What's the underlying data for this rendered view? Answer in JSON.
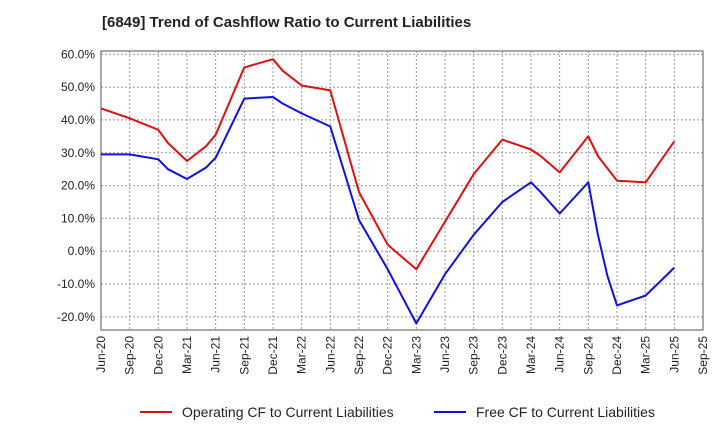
{
  "chart_data": {
    "type": "line",
    "title": "[6849]  Trend of Cashflow Ratio to Current Liabilities",
    "xlabel": "",
    "ylabel": "",
    "x_ticks": [
      "Jun-20",
      "Sep-20",
      "Dec-20",
      "Mar-21",
      "Jun-21",
      "Sep-21",
      "Dec-21",
      "Mar-22",
      "Jun-22",
      "Sep-22",
      "Dec-22",
      "Mar-23",
      "Jun-23",
      "Sep-23",
      "Dec-23",
      "Mar-24",
      "Jun-24",
      "Sep-24",
      "Dec-24",
      "Mar-25",
      "Jun-25",
      "Sep-25"
    ],
    "y_ticks": [
      "60.0%",
      "50.0%",
      "40.0%",
      "30.0%",
      "20.0%",
      "10.0%",
      "0.0%",
      "-10.0%",
      "-20.0%"
    ],
    "ylim": [
      -24,
      61
    ],
    "grid": true,
    "legend_position": "bottom",
    "series": [
      {
        "name": "Operating CF to Current Liabilities",
        "color": "#dd1111",
        "x": [
          "Jun-20",
          "Sep-20",
          "Dec-20",
          "Jan-21",
          "Mar-21",
          "May-21",
          "Jun-21",
          "Sep-21",
          "Dec-21",
          "Jan-22",
          "Mar-22",
          "Jun-22",
          "Sep-22",
          "Dec-22",
          "Mar-23",
          "Jun-23",
          "Sep-23",
          "Dec-23",
          "Mar-24",
          "Apr-24",
          "Jun-24",
          "Sep-24",
          "Oct-24",
          "Dec-24",
          "Mar-25",
          "Jun-25"
        ],
        "y": [
          43.5,
          40.5,
          37.0,
          33.0,
          27.5,
          32.0,
          35.5,
          56.0,
          58.5,
          55.0,
          50.5,
          49.0,
          18.0,
          2.0,
          -5.5,
          9.0,
          23.5,
          34.0,
          31.0,
          29.0,
          24.0,
          35.0,
          29.0,
          21.5,
          21.0,
          33.5
        ]
      },
      {
        "name": "Free CF to Current Liabilities",
        "color": "#1111dd",
        "x": [
          "Jun-20",
          "Sep-20",
          "Dec-20",
          "Jan-21",
          "Mar-21",
          "May-21",
          "Jun-21",
          "Sep-21",
          "Dec-21",
          "Jan-22",
          "Mar-22",
          "Jun-22",
          "Sep-22",
          "Dec-22",
          "Mar-23",
          "Jun-23",
          "Sep-23",
          "Dec-23",
          "Mar-24",
          "Apr-24",
          "Jun-24",
          "Sep-24",
          "Oct-24",
          "Nov-24",
          "Dec-24",
          "Mar-25",
          "Jun-25"
        ],
        "y": [
          29.5,
          29.5,
          28.0,
          25.0,
          22.0,
          25.5,
          28.5,
          46.5,
          47.0,
          45.0,
          42.0,
          38.0,
          9.5,
          -5.5,
          -22.0,
          -7.0,
          5.0,
          15.0,
          21.0,
          18.0,
          11.5,
          21.0,
          5.0,
          -7.5,
          -16.5,
          -13.5,
          -5.0
        ]
      }
    ]
  }
}
